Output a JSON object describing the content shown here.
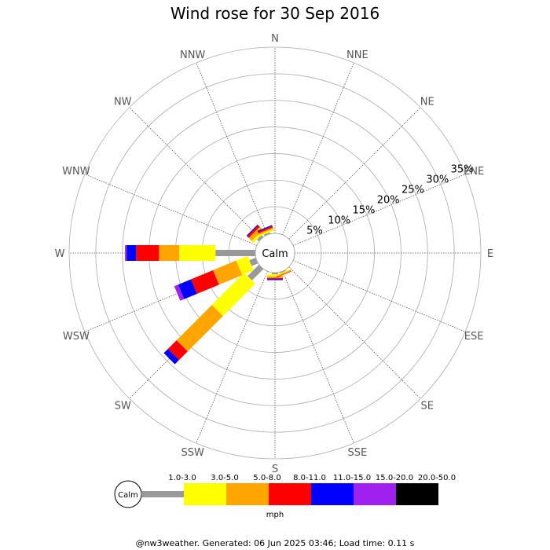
{
  "chart_data": {
    "type": "wind-rose",
    "title": "Wind rose for 30 Sep 2016",
    "directions": [
      "N",
      "NNE",
      "NE",
      "ENE",
      "E",
      "ESE",
      "SE",
      "SSE",
      "S",
      "SSW",
      "SW",
      "WSW",
      "W",
      "WNW",
      "NW",
      "NNW"
    ],
    "rings": [
      5,
      10,
      15,
      20,
      25,
      30,
      35
    ],
    "ring_unit": "%",
    "calm_label": "Calm",
    "unit": "mph",
    "speed_bins": [
      {
        "label": "Calm",
        "color": "#999999"
      },
      {
        "label": "1.0-3.0",
        "color": "#999999"
      },
      {
        "label": "3.0-5.0",
        "color": "#ffff00"
      },
      {
        "label": "5.0-8.0",
        "color": "#ffa500"
      },
      {
        "label": "8.0-11.0",
        "color": "#ff0000"
      },
      {
        "label": "11.0-15.0",
        "color": "#0000ff"
      },
      {
        "label": "15.0-20.0",
        "color": "#a020f0"
      },
      {
        "label": "20.0-50.0",
        "color": "#000000"
      }
    ],
    "max_percent": 35,
    "calm_percent": 2.5,
    "series": [
      {
        "direction": "NW",
        "segments": [
          0.5,
          0.5,
          0.8,
          0.4,
          0.2,
          0,
          0
        ]
      },
      {
        "direction": "NNW",
        "segments": [
          0.3,
          0.3,
          0.3,
          0.3,
          0.2,
          0,
          0
        ]
      },
      {
        "direction": "S",
        "segments": [
          0.3,
          0.4,
          0.3,
          0.2,
          0.2,
          0,
          0
        ]
      },
      {
        "direction": "SSE",
        "segments": [
          0.2,
          0.2,
          0.2,
          0.1,
          0,
          0,
          0
        ]
      },
      {
        "direction": "SW",
        "segments": [
          3,
          8.6,
          9.4,
          2.3,
          1.1,
          0,
          0
        ]
      },
      {
        "direction": "WSW",
        "segments": [
          1.3,
          2.3,
          4.7,
          4.5,
          2.6,
          0.8,
          0
        ]
      },
      {
        "direction": "W",
        "segments": [
          7.5,
          6.8,
          3.8,
          4.3,
          1.8,
          0.3,
          0
        ]
      }
    ]
  },
  "footer": "@nw3weather. Generated: 06 Jun 2025 03:46; Load time: 0.11 s"
}
